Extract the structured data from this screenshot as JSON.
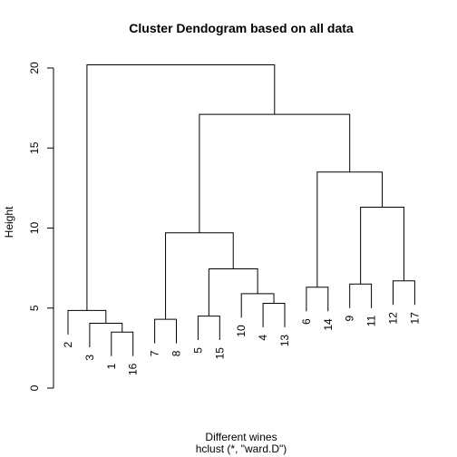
{
  "chart_data": {
    "type": "dendrogram",
    "title": "Cluster Dendogram based on all data",
    "xlabel": "Different wines",
    "sub": "hclust (*, \"ward.D\")",
    "ylabel": "Height",
    "ylim": [
      0,
      20
    ],
    "yticks": [
      0,
      5,
      10,
      15,
      20
    ],
    "leaf_order": [
      "2",
      "3",
      "1",
      "16",
      "7",
      "8",
      "5",
      "15",
      "10",
      "4",
      "13",
      "6",
      "14",
      "9",
      "11",
      "12",
      "17"
    ],
    "merges": [
      {
        "left": "1",
        "right": "16",
        "height": 3.5
      },
      {
        "left": "3",
        "right": "1+16",
        "height": 4.05
      },
      {
        "left": "2",
        "right": "3+1+16",
        "height": 4.85
      },
      {
        "left": "7",
        "right": "8",
        "height": 4.3
      },
      {
        "left": "5",
        "right": "15",
        "height": 4.5
      },
      {
        "left": "4",
        "right": "13",
        "height": 5.3
      },
      {
        "left": "10",
        "right": "4+13",
        "height": 5.9
      },
      {
        "left": "5+15",
        "right": "10+4+13",
        "height": 7.45
      },
      {
        "left": "7+8",
        "right": "5+15+10+4+13",
        "height": 9.7
      },
      {
        "left": "6",
        "right": "14",
        "height": 6.3
      },
      {
        "left": "9",
        "right": "11",
        "height": 6.5
      },
      {
        "left": "12",
        "right": "17",
        "height": 6.7
      },
      {
        "left": "9+11",
        "right": "12+17",
        "height": 11.3
      },
      {
        "left": "6+14",
        "right": "9+11+12+17",
        "height": 13.5
      },
      {
        "left": "7-13 group",
        "right": "6-17 group",
        "height": 17.1
      },
      {
        "left": "2+3+1+16",
        "right": "rest",
        "height": 20.2
      }
    ],
    "leaf_height_offset": 1.0
  }
}
